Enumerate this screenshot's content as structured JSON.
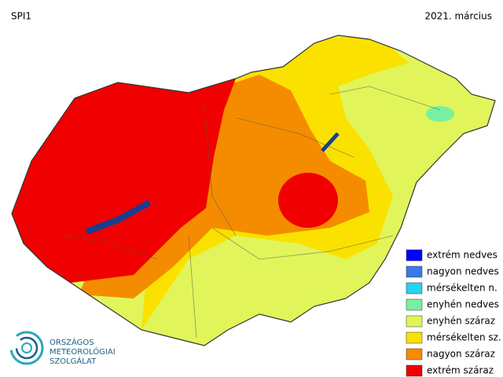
{
  "header": {
    "title": "SPI1",
    "date": "2021. március"
  },
  "legend": [
    {
      "label": "extrém nedves",
      "color": "#0000ff"
    },
    {
      "label": "nagyon nedves",
      "color": "#3c78e6"
    },
    {
      "label": "mérsékelten n.",
      "color": "#28d2f0"
    },
    {
      "label": "enyhén nedves",
      "color": "#78f0a0"
    },
    {
      "label": "enyhén száraz",
      "color": "#e1f55a"
    },
    {
      "label": "mérsékelten sz.",
      "color": "#fae100"
    },
    {
      "label": "nagyon száraz",
      "color": "#f58c00"
    },
    {
      "label": "extrém száraz",
      "color": "#f00000"
    }
  ],
  "logo": {
    "lines": [
      "ORSZÁGOS",
      "METEOROLÓGIAI",
      "SZOLGÁLAT"
    ]
  }
}
